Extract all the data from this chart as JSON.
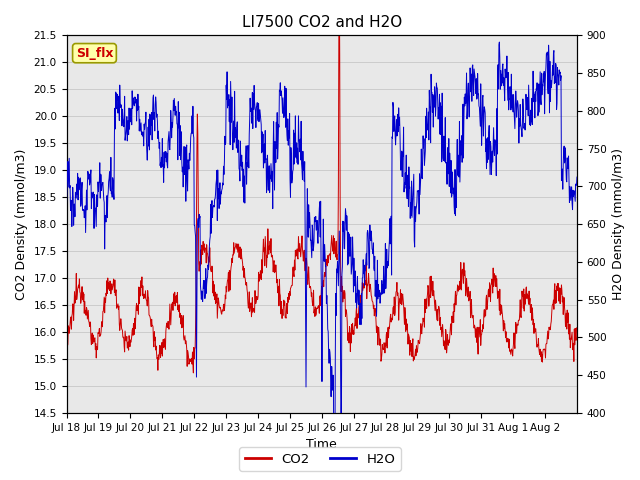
{
  "title": "LI7500 CO2 and H2O",
  "xlabel": "Time",
  "ylabel_left": "CO2 Density (mmol/m3)",
  "ylabel_right": "H2O Density (mmol/m3)",
  "ylim_left": [
    14.5,
    21.5
  ],
  "ylim_right": [
    400,
    900
  ],
  "yticks_left": [
    14.5,
    15.0,
    15.5,
    16.0,
    16.5,
    17.0,
    17.5,
    18.0,
    18.5,
    19.0,
    19.5,
    20.0,
    20.5,
    21.0,
    21.5
  ],
  "yticks_right": [
    400,
    450,
    500,
    550,
    600,
    650,
    700,
    750,
    800,
    850,
    900
  ],
  "xtick_labels": [
    "Jul 18",
    "Jul 19",
    "Jul 20",
    "Jul 21",
    "Jul 22",
    "Jul 23",
    "Jul 24",
    "Jul 25",
    "Jul 26",
    "Jul 27",
    "Jul 28",
    "Jul 29",
    "Jul 30",
    "Jul 31",
    "Aug 1",
    "Aug 2"
  ],
  "color_co2": "#cc0000",
  "color_h2o": "#0000cc",
  "legend_labels": [
    "CO2",
    "H2O"
  ],
  "annotation_text": "SI_flx",
  "annotation_bg": "#ffffaa",
  "annotation_border": "#999900",
  "grid_color": "#cccccc",
  "bg_color": "#e8e8e8",
  "title_fontsize": 11,
  "axis_fontsize": 9,
  "tick_fontsize": 7.5
}
